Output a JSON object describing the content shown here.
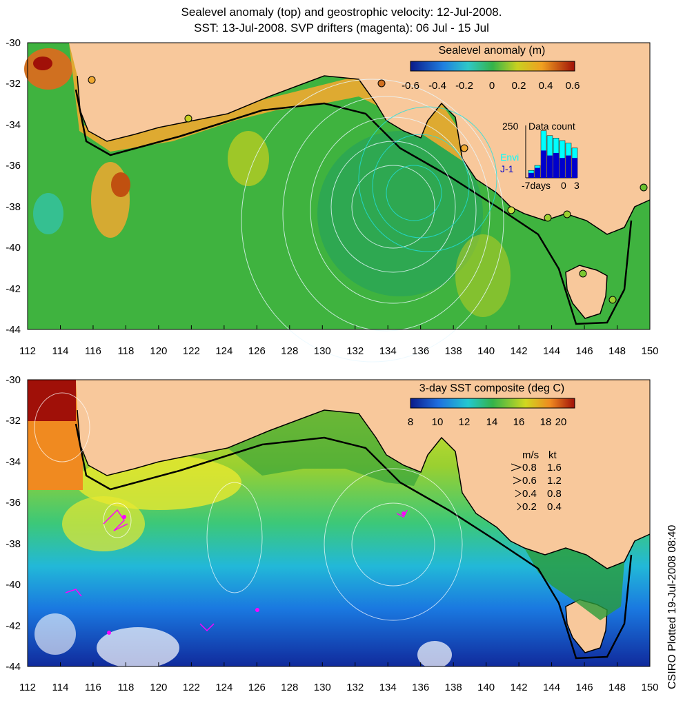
{
  "header": {
    "line1": "Sealevel anomaly (top) and geostrophic velocity: 12-Jul-2008.",
    "line2": "SST: 13-Jul-2008. SVP drifters (magenta): 06 Jul - 15 Jul"
  },
  "side_note": "CSIRO Plotted 19-Jul-2008 08:40",
  "axes": {
    "x_ticks": [
      "112",
      "114",
      "116",
      "118",
      "120",
      "122",
      "124",
      "126",
      "128",
      "130",
      "132",
      "134",
      "136",
      "138",
      "140",
      "142",
      "144",
      "146",
      "148",
      "150"
    ],
    "y_ticks": [
      "-30",
      "-32",
      "-34",
      "-36",
      "-38",
      "-40",
      "-42",
      "-44"
    ]
  },
  "top_map": {
    "colorbar_title": "Sealevel anomaly (m)",
    "colorbar_ticks": [
      "-0.6",
      "-0.4",
      "-0.2",
      "0",
      "0.2",
      "0.4",
      "0.6"
    ],
    "histogram": {
      "count_label": "250",
      "title": "Data count",
      "legend": [
        "Envi",
        "J-1"
      ],
      "x_ticks": [
        "-7days",
        "0",
        "3"
      ],
      "envi_color": "#00ffff",
      "j1_color": "#0000cc"
    }
  },
  "bottom_map": {
    "colorbar_title": "3-day SST composite (deg C)",
    "colorbar_ticks": [
      "8",
      "10",
      "12",
      "14",
      "16",
      "18",
      "20"
    ],
    "speed_legend": {
      "header_ms": "m/s",
      "header_kt": "kt",
      "rows": [
        {
          "ms": "0.8",
          "kt": "1.6"
        },
        {
          "ms": "0.6",
          "kt": "1.2"
        },
        {
          "ms": "0.4",
          "kt": "0.8"
        },
        {
          "ms": "0.2",
          "kt": "0.4"
        }
      ]
    }
  },
  "colors": {
    "land": "#f8c89b",
    "ocean_green": "#3fb33f",
    "coast": "#000000",
    "drifters": "#ff00ff"
  }
}
